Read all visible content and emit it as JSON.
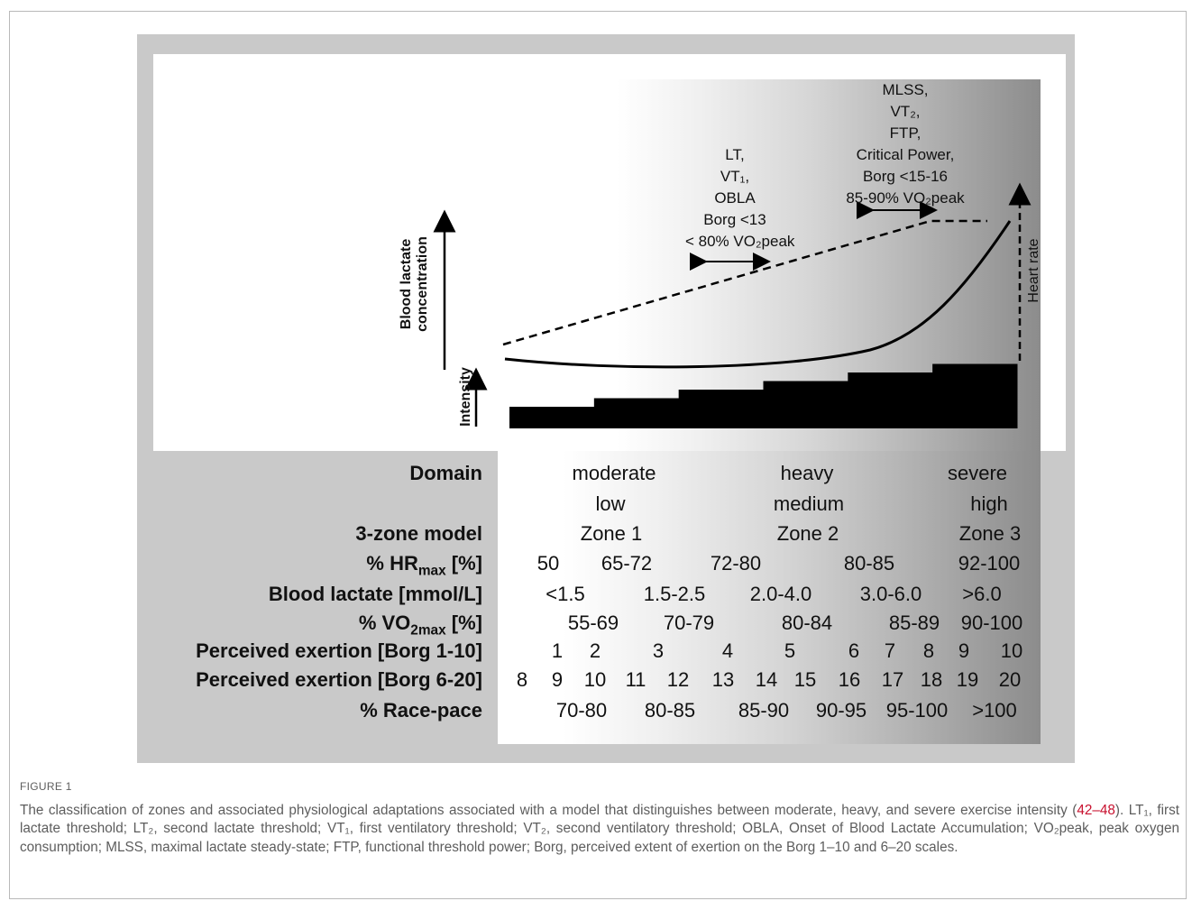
{
  "diagram": {
    "y_axis_label": [
      "Blood lactate",
      "concentration"
    ],
    "intensity_label": "Intensity",
    "heart_rate_label": "Heart rate",
    "lt_block": {
      "lines": [
        "LT,",
        "VT₁,",
        "OBLA",
        "Borg <13",
        "< 80% VO₂peak"
      ]
    },
    "mlss_block": {
      "lines": [
        "MLSS,",
        "VT₂,",
        "FTP,",
        "Critical Power,",
        "Borg <15-16",
        "85-90% VO₂peak"
      ]
    },
    "intensity_steps": 6
  },
  "table": {
    "row_labels": [
      "Domain",
      "",
      "3-zone model",
      "% HRmax [%]",
      "Blood lactate [mmol/L]",
      "% VO2max [%]",
      "Perceived exertion [Borg 1-10]",
      "Perceived exertion [Borg 6-20]",
      "% Race-pace"
    ],
    "domain": [
      "moderate",
      "heavy",
      "severe"
    ],
    "intensity": [
      "low",
      "medium",
      "high"
    ],
    "zones": [
      "Zone 1",
      "Zone 2",
      "Zone 3"
    ],
    "hrmax": [
      "50",
      "65-72",
      "72-80",
      "80-85",
      "92-100"
    ],
    "lactate": [
      "<1.5",
      "1.5-2.5",
      "2.0-4.0",
      "3.0-6.0",
      ">6.0"
    ],
    "vo2max": [
      "55-69",
      "70-79",
      "80-84",
      "85-89",
      "90-100"
    ],
    "borg10": [
      "1",
      "2",
      "3",
      "4",
      "5",
      "6",
      "7",
      "8",
      "9",
      "10"
    ],
    "borg20": [
      "8",
      "9",
      "10",
      "11",
      "12",
      "13",
      "14",
      "15",
      "16",
      "17",
      "18",
      "19",
      "20"
    ],
    "racepace": [
      "70-80",
      "80-85",
      "85-90",
      "90-95",
      "95-100",
      ">100"
    ]
  },
  "caption": {
    "label": "FIGURE 1",
    "text_1": "The classification of zones and associated physiological adaptations associated with a model that distinguishes between moderate, heavy, and severe exercise intensity (",
    "ref": "42–48",
    "text_2": "). LT₁, first lactate threshold; LT₂, second lactate threshold; VT₁, first ventilatory threshold; VT₂, second ventilatory threshold; OBLA, Onset of Blood Lactate Accumulation; VO₂peak, peak oxygen consumption; MLSS, maximal lactate steady-state; FTP, functional threshold power; Borg, perceived extent of exertion on the Borg 1–10 and 6–20 scales."
  }
}
